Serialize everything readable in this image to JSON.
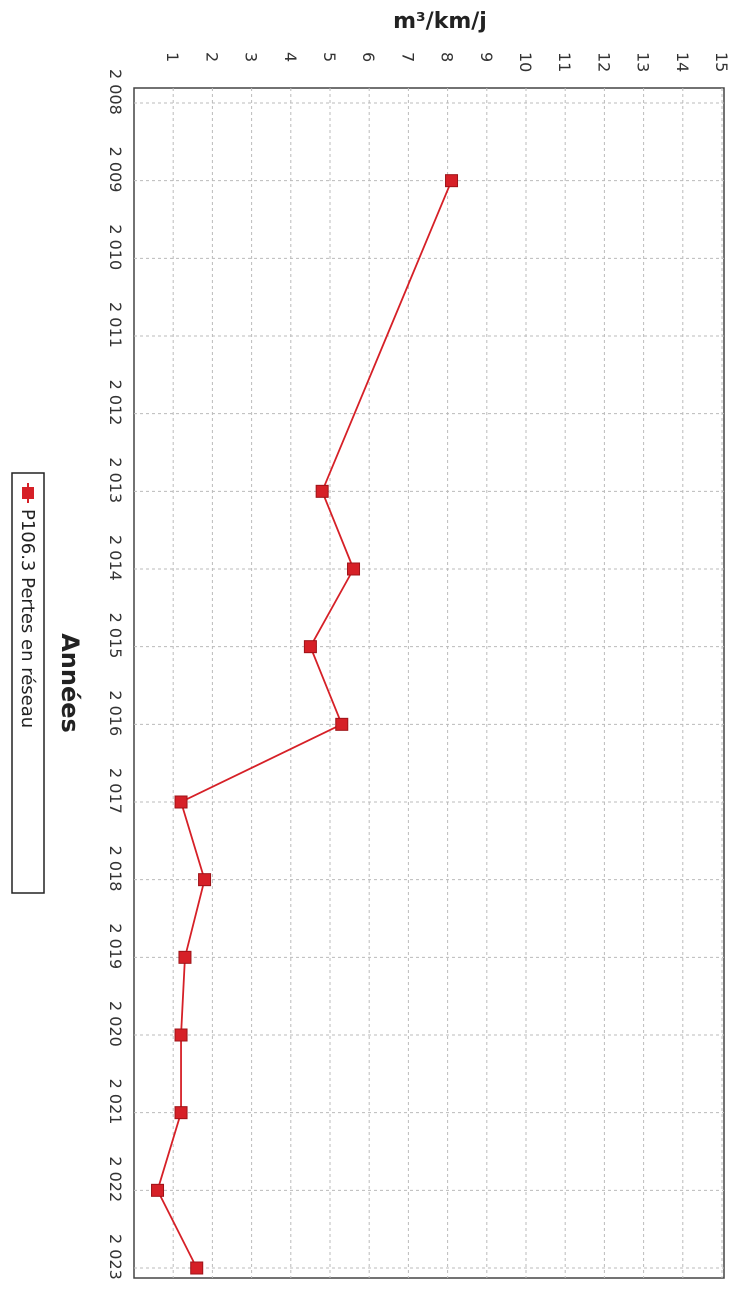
{
  "chart_data": {
    "type": "line",
    "orientation": "rotated-90-clockwise",
    "xlabel": "Années",
    "ylabel": "m³/km/j",
    "x": [
      "2 008",
      "2 009",
      "2 010",
      "2 011",
      "2 012",
      "2 013",
      "2 014",
      "2 015",
      "2 016",
      "2 017",
      "2 018",
      "2 019",
      "2 020",
      "2 021",
      "2 022",
      "2 023"
    ],
    "yticks": [
      "1",
      "2",
      "3",
      "4",
      "5",
      "6",
      "7",
      "8",
      "9",
      "10",
      "11",
      "12",
      "13",
      "14",
      "15"
    ],
    "ylim": [
      0,
      15
    ],
    "grid": true,
    "legend_position": "bottom",
    "series": [
      {
        "name": "P106.3 Pertes en réseau",
        "color": "#d62027",
        "values": [
          null,
          8.1,
          null,
          null,
          null,
          4.8,
          5.6,
          4.5,
          5.3,
          1.2,
          1.8,
          1.3,
          1.2,
          1.2,
          0.6,
          1.6
        ]
      }
    ]
  }
}
